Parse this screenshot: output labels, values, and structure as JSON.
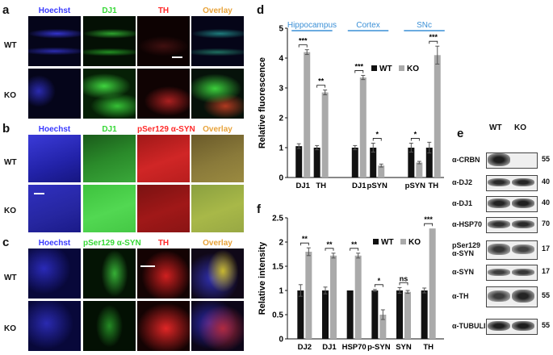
{
  "panels": {
    "a": {
      "label": "a",
      "headers": [
        "Hoechst",
        "DJ1",
        "TH",
        "Overlay"
      ],
      "rows": [
        "WT",
        "KO"
      ]
    },
    "b": {
      "label": "b",
      "headers": [
        "Hoechst",
        "DJ1",
        "pSer129 α-SYN",
        "Overlay"
      ],
      "rows": [
        "WT",
        "KO"
      ]
    },
    "c": {
      "label": "c",
      "headers": [
        "Hoechst",
        "pSer129 α-SYN",
        "TH",
        "Overlay"
      ],
      "rows": [
        "WT",
        "KO"
      ]
    },
    "d": {
      "label": "d"
    },
    "e": {
      "label": "e"
    },
    "f": {
      "label": "f"
    }
  },
  "colors": {
    "hoechst": "#3a3aff",
    "green": "#36d836",
    "red": "#ff2a2a",
    "overlay": "#e8a33a",
    "wt_bar": "#111111",
    "ko_bar": "#aaaaaa",
    "region_line": "#3a8fd6"
  },
  "chart_data": [
    {
      "id": "d",
      "type": "bar",
      "ylabel": "Relative fluorescence",
      "ylim": [
        0,
        5
      ],
      "yticks": [
        "0",
        "1",
        "2",
        "3",
        "4",
        "5"
      ],
      "categories": [
        "DJ1",
        "TH",
        "DJ1",
        "pSYN",
        "pSYN",
        "TH"
      ],
      "groups": [
        {
          "name": "Hippocampus",
          "categories": [
            0,
            1
          ]
        },
        {
          "name": "Cortex",
          "categories": [
            2,
            3
          ]
        },
        {
          "name": "SNc",
          "categories": [
            4,
            5
          ]
        }
      ],
      "series": [
        {
          "name": "WT",
          "values": [
            1.05,
            1.0,
            1.0,
            1.0,
            1.0,
            1.0
          ],
          "errors": [
            0.08,
            0.07,
            0.07,
            0.15,
            0.15,
            0.18
          ]
        },
        {
          "name": "KO",
          "values": [
            4.2,
            2.85,
            3.35,
            0.4,
            0.5,
            4.1
          ],
          "errors": [
            0.08,
            0.08,
            0.07,
            0.05,
            0.04,
            0.3
          ]
        }
      ],
      "significance": [
        "***",
        "**",
        "***",
        "*",
        "*",
        "***"
      ],
      "legend": "top-right"
    },
    {
      "id": "f",
      "type": "bar",
      "ylabel": "Relative intensity",
      "ylim": [
        0,
        2.5
      ],
      "yticks": [
        "0",
        "0.5",
        "1",
        "1.5",
        "2",
        "2.5"
      ],
      "categories": [
        "DJ2",
        "DJ1",
        "HSP70",
        "p-SYN",
        "SYN",
        "TH"
      ],
      "series": [
        {
          "name": "WT",
          "values": [
            1.0,
            1.0,
            1.0,
            1.0,
            1.0,
            1.0
          ],
          "errors": [
            0.12,
            0.07,
            0.0,
            0.02,
            0.06,
            0.05
          ]
        },
        {
          "name": "KO",
          "values": [
            1.8,
            1.72,
            1.72,
            0.5,
            0.97,
            2.28
          ],
          "errors": [
            0.08,
            0.05,
            0.05,
            0.1,
            0.03,
            0.0
          ]
        }
      ],
      "significance": [
        "**",
        "**",
        "**",
        "*",
        "ns",
        "***"
      ],
      "legend": "top-right"
    }
  ],
  "blot": {
    "columns": [
      "WT",
      "KO"
    ],
    "rows": [
      {
        "label": "α-CRBN",
        "kda": "55"
      },
      {
        "label": "α-DJ2",
        "kda": "40"
      },
      {
        "label": "α-DJ1",
        "kda": "40"
      },
      {
        "label": "α-HSP70",
        "kda": "70"
      },
      {
        "label": "pSer129\nα-SYN",
        "kda": "17"
      },
      {
        "label": "α-SYN",
        "kda": "17"
      },
      {
        "label": "α-TH",
        "kda": "55"
      },
      {
        "label": "α-TUBULIN",
        "kda": "55"
      }
    ]
  }
}
